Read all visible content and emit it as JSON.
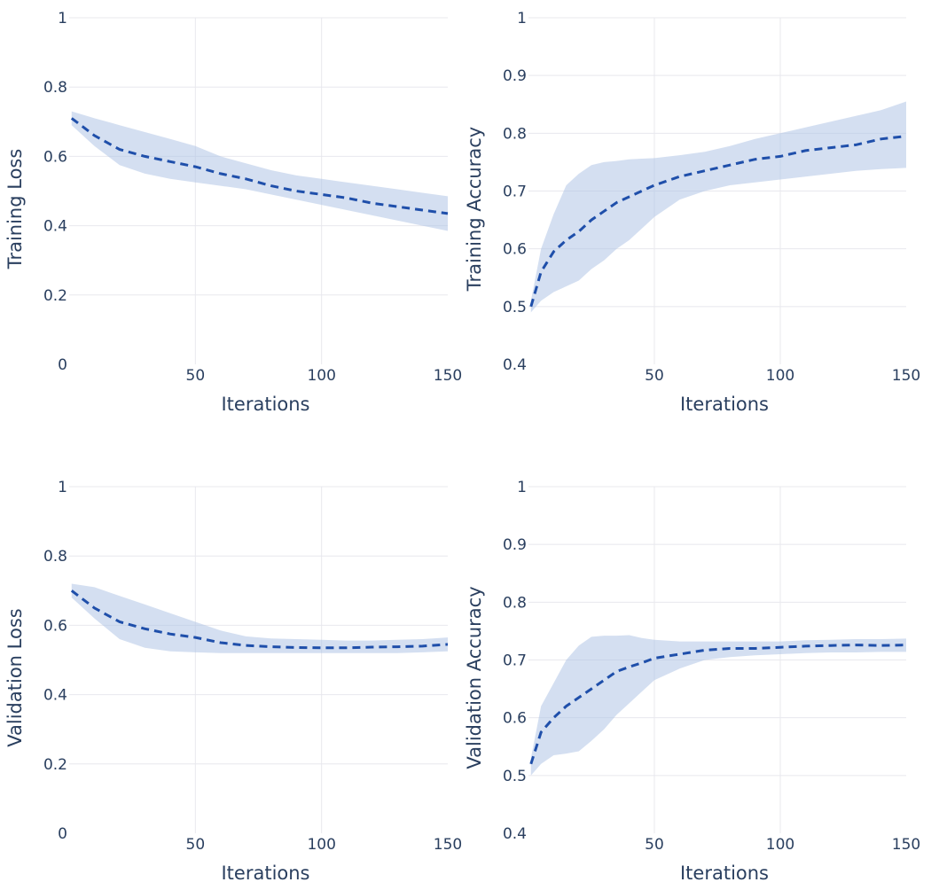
{
  "colors": {
    "line": "#1f4faa",
    "band": "#a9bfe3",
    "grid": "#e8e8ee",
    "text": "#2a3f5f"
  },
  "chart_data": [
    {
      "type": "line",
      "xlabel": "Iterations",
      "ylabel": "Training Loss",
      "xlim": [
        0,
        150
      ],
      "ylim": [
        0,
        1
      ],
      "xticks": [
        50,
        100,
        150
      ],
      "yticks": [
        0,
        0.2,
        0.4,
        0.6,
        0.8,
        1
      ],
      "ytick_labels": [
        "0",
        "0.2",
        "0.4",
        "0.6",
        "0.8",
        "1"
      ],
      "grid": true,
      "series": [
        {
          "style": "dashed-with-band",
          "x": [
            1,
            10,
            20,
            30,
            40,
            50,
            60,
            70,
            80,
            90,
            100,
            110,
            120,
            130,
            140,
            150
          ],
          "mean": [
            0.71,
            0.66,
            0.62,
            0.6,
            0.585,
            0.57,
            0.55,
            0.535,
            0.515,
            0.5,
            0.49,
            0.48,
            0.465,
            0.455,
            0.445,
            0.435
          ],
          "upper": [
            0.73,
            0.71,
            0.69,
            0.67,
            0.65,
            0.63,
            0.6,
            0.58,
            0.56,
            0.545,
            0.535,
            0.525,
            0.515,
            0.505,
            0.495,
            0.485
          ],
          "lower": [
            0.69,
            0.63,
            0.575,
            0.55,
            0.535,
            0.525,
            0.515,
            0.505,
            0.49,
            0.475,
            0.46,
            0.445,
            0.43,
            0.415,
            0.4,
            0.385
          ]
        }
      ]
    },
    {
      "type": "line",
      "xlabel": "Iterations",
      "ylabel": "Training Accuracy",
      "xlim": [
        0,
        150
      ],
      "ylim": [
        0.4,
        1
      ],
      "xticks": [
        50,
        100,
        150
      ],
      "yticks": [
        0.4,
        0.5,
        0.6,
        0.7,
        0.8,
        0.9,
        1
      ],
      "ytick_labels": [
        "0.4",
        "0.5",
        "0.6",
        "0.7",
        "0.8",
        "0.9",
        "1"
      ],
      "grid": true,
      "series": [
        {
          "style": "dashed-with-band",
          "x": [
            1,
            5,
            10,
            15,
            20,
            25,
            30,
            35,
            40,
            45,
            50,
            60,
            70,
            80,
            90,
            100,
            110,
            120,
            130,
            140,
            150
          ],
          "mean": [
            0.5,
            0.56,
            0.595,
            0.615,
            0.63,
            0.65,
            0.665,
            0.68,
            0.69,
            0.7,
            0.71,
            0.725,
            0.735,
            0.745,
            0.755,
            0.76,
            0.77,
            0.775,
            0.78,
            0.79,
            0.795
          ],
          "upper": [
            0.51,
            0.6,
            0.66,
            0.71,
            0.73,
            0.745,
            0.75,
            0.752,
            0.755,
            0.756,
            0.757,
            0.762,
            0.768,
            0.778,
            0.79,
            0.8,
            0.81,
            0.82,
            0.83,
            0.84,
            0.855
          ],
          "lower": [
            0.49,
            0.51,
            0.525,
            0.535,
            0.545,
            0.565,
            0.58,
            0.6,
            0.615,
            0.635,
            0.655,
            0.685,
            0.7,
            0.71,
            0.715,
            0.72,
            0.725,
            0.73,
            0.735,
            0.738,
            0.74
          ]
        }
      ]
    },
    {
      "type": "line",
      "xlabel": "Iterations",
      "ylabel": "Validation Loss",
      "xlim": [
        0,
        150
      ],
      "ylim": [
        0,
        1
      ],
      "xticks": [
        50,
        100,
        150
      ],
      "yticks": [
        0,
        0.2,
        0.4,
        0.6,
        0.8,
        1
      ],
      "ytick_labels": [
        "0",
        "0.2",
        "0.4",
        "0.6",
        "0.8",
        "1"
      ],
      "grid": true,
      "series": [
        {
          "style": "dashed-with-band",
          "x": [
            1,
            10,
            20,
            30,
            40,
            50,
            60,
            70,
            80,
            90,
            100,
            110,
            120,
            130,
            140,
            150
          ],
          "mean": [
            0.7,
            0.65,
            0.61,
            0.59,
            0.575,
            0.565,
            0.55,
            0.542,
            0.538,
            0.536,
            0.535,
            0.535,
            0.537,
            0.538,
            0.54,
            0.545
          ],
          "upper": [
            0.72,
            0.71,
            0.685,
            0.66,
            0.635,
            0.61,
            0.585,
            0.568,
            0.562,
            0.56,
            0.558,
            0.556,
            0.556,
            0.558,
            0.56,
            0.565
          ],
          "lower": [
            0.68,
            0.62,
            0.56,
            0.535,
            0.525,
            0.522,
            0.52,
            0.52,
            0.52,
            0.52,
            0.52,
            0.52,
            0.52,
            0.52,
            0.522,
            0.525
          ]
        }
      ]
    },
    {
      "type": "line",
      "xlabel": "Iterations",
      "ylabel": "Validation Accuracy",
      "xlim": [
        0,
        150
      ],
      "ylim": [
        0.4,
        1
      ],
      "xticks": [
        50,
        100,
        150
      ],
      "yticks": [
        0.4,
        0.5,
        0.6,
        0.7,
        0.8,
        0.9,
        1
      ],
      "ytick_labels": [
        "0.4",
        "0.5",
        "0.6",
        "0.7",
        "0.8",
        "0.9",
        "1"
      ],
      "grid": true,
      "series": [
        {
          "style": "dashed-with-band",
          "x": [
            1,
            5,
            10,
            15,
            20,
            25,
            30,
            35,
            40,
            45,
            50,
            60,
            70,
            80,
            90,
            100,
            110,
            120,
            130,
            140,
            150
          ],
          "mean": [
            0.52,
            0.575,
            0.6,
            0.62,
            0.635,
            0.65,
            0.665,
            0.68,
            0.688,
            0.695,
            0.703,
            0.71,
            0.717,
            0.72,
            0.72,
            0.722,
            0.724,
            0.725,
            0.726,
            0.725,
            0.726
          ],
          "upper": [
            0.53,
            0.62,
            0.66,
            0.7,
            0.725,
            0.74,
            0.742,
            0.742,
            0.743,
            0.738,
            0.735,
            0.732,
            0.732,
            0.732,
            0.732,
            0.732,
            0.734,
            0.735,
            0.736,
            0.736,
            0.737
          ],
          "lower": [
            0.5,
            0.52,
            0.535,
            0.538,
            0.542,
            0.56,
            0.58,
            0.605,
            0.625,
            0.645,
            0.665,
            0.685,
            0.7,
            0.705,
            0.708,
            0.71,
            0.712,
            0.713,
            0.713,
            0.714,
            0.714
          ]
        }
      ]
    }
  ]
}
